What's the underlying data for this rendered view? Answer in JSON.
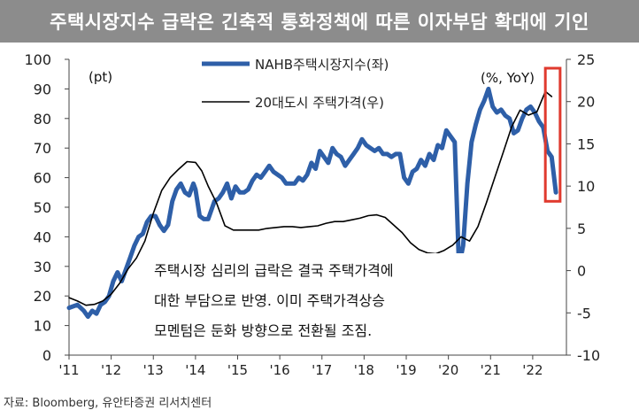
{
  "title": "주택시장지수 급락은 긴축적 통화정책에 따른 이자부담 확대에 기인",
  "source": "자료: Bloomberg, 유안타증권 리서치센터",
  "chart_data": {
    "type": "line",
    "left_axis_unit": "(pt)",
    "right_axis_unit": "(%, YoY)",
    "left_ylim": [
      0,
      100
    ],
    "right_ylim": [
      -10,
      25
    ],
    "left_ticks": [
      "0",
      "10",
      "20",
      "30",
      "40",
      "50",
      "60",
      "70",
      "80",
      "90",
      "100"
    ],
    "right_ticks": [
      "-10",
      "-5",
      "0",
      "5",
      "10",
      "15",
      "20",
      "25"
    ],
    "x_ticks": [
      "'11",
      "'12",
      "'13",
      "'14",
      "'15",
      "'16",
      "'17",
      "'18",
      "'19",
      "'20",
      "'21",
      "'22"
    ],
    "annotation": [
      "주택시장 심리의 급락은 결국 주택가격에",
      "대한 부담으로 반영. 이미 주택가격상승",
      "모멘텀은 둔화 방향으로 전환될 조짐."
    ],
    "colors": {
      "nahb": "#2e5fa8",
      "price": "#000000",
      "highlight": "#e03a2e"
    },
    "series": [
      {
        "name": "NAHB주택시장지수(좌)",
        "axis": "left",
        "points": [
          [
            2011.0,
            16
          ],
          [
            2011.1,
            16.5
          ],
          [
            2011.2,
            17
          ],
          [
            2011.35,
            15
          ],
          [
            2011.45,
            13
          ],
          [
            2011.55,
            15
          ],
          [
            2011.65,
            14
          ],
          [
            2011.75,
            17
          ],
          [
            2011.85,
            18
          ],
          [
            2011.95,
            20
          ],
          [
            2012.05,
            25
          ],
          [
            2012.15,
            28
          ],
          [
            2012.25,
            25
          ],
          [
            2012.35,
            29
          ],
          [
            2012.45,
            33
          ],
          [
            2012.55,
            37
          ],
          [
            2012.65,
            40
          ],
          [
            2012.75,
            41
          ],
          [
            2012.85,
            45
          ],
          [
            2012.95,
            47
          ],
          [
            2013.05,
            47
          ],
          [
            2013.15,
            44
          ],
          [
            2013.25,
            42
          ],
          [
            2013.35,
            44
          ],
          [
            2013.45,
            52
          ],
          [
            2013.55,
            56
          ],
          [
            2013.65,
            58
          ],
          [
            2013.75,
            55
          ],
          [
            2013.85,
            54
          ],
          [
            2013.95,
            58
          ],
          [
            2014.0,
            56
          ],
          [
            2014.1,
            47
          ],
          [
            2014.2,
            46
          ],
          [
            2014.3,
            46
          ],
          [
            2014.45,
            52
          ],
          [
            2014.55,
            53
          ],
          [
            2014.65,
            55
          ],
          [
            2014.75,
            58
          ],
          [
            2014.85,
            53
          ],
          [
            2014.95,
            57
          ],
          [
            2015.05,
            55
          ],
          [
            2015.15,
            55
          ],
          [
            2015.25,
            56
          ],
          [
            2015.35,
            59
          ],
          [
            2015.45,
            61
          ],
          [
            2015.55,
            60
          ],
          [
            2015.65,
            62
          ],
          [
            2015.75,
            64
          ],
          [
            2015.85,
            62
          ],
          [
            2015.95,
            61
          ],
          [
            2016.05,
            60
          ],
          [
            2016.15,
            58
          ],
          [
            2016.25,
            58
          ],
          [
            2016.35,
            58
          ],
          [
            2016.45,
            60
          ],
          [
            2016.55,
            59
          ],
          [
            2016.65,
            61
          ],
          [
            2016.75,
            65
          ],
          [
            2016.85,
            63
          ],
          [
            2016.95,
            69
          ],
          [
            2017.05,
            67
          ],
          [
            2017.15,
            65
          ],
          [
            2017.25,
            70
          ],
          [
            2017.35,
            68
          ],
          [
            2017.45,
            67
          ],
          [
            2017.55,
            64
          ],
          [
            2017.65,
            66
          ],
          [
            2017.75,
            68
          ],
          [
            2017.85,
            70
          ],
          [
            2017.95,
            73
          ],
          [
            2018.05,
            71
          ],
          [
            2018.15,
            70
          ],
          [
            2018.25,
            69
          ],
          [
            2018.35,
            70
          ],
          [
            2018.45,
            68
          ],
          [
            2018.55,
            68
          ],
          [
            2018.65,
            67
          ],
          [
            2018.75,
            68
          ],
          [
            2018.85,
            68
          ],
          [
            2018.95,
            60
          ],
          [
            2019.05,
            58
          ],
          [
            2019.15,
            62
          ],
          [
            2019.25,
            63
          ],
          [
            2019.35,
            66
          ],
          [
            2019.45,
            64
          ],
          [
            2019.55,
            68
          ],
          [
            2019.65,
            66
          ],
          [
            2019.75,
            71
          ],
          [
            2019.85,
            70
          ],
          [
            2019.95,
            76
          ],
          [
            2020.05,
            74
          ],
          [
            2020.15,
            72
          ],
          [
            2020.25,
            30
          ],
          [
            2020.35,
            37
          ],
          [
            2020.45,
            58
          ],
          [
            2020.55,
            72
          ],
          [
            2020.65,
            78
          ],
          [
            2020.75,
            83
          ],
          [
            2020.85,
            86
          ],
          [
            2020.95,
            90
          ],
          [
            2021.05,
            84
          ],
          [
            2021.15,
            82
          ],
          [
            2021.25,
            83
          ],
          [
            2021.35,
            81
          ],
          [
            2021.45,
            80
          ],
          [
            2021.55,
            75
          ],
          [
            2021.65,
            76
          ],
          [
            2021.75,
            80
          ],
          [
            2021.85,
            83
          ],
          [
            2021.95,
            84
          ],
          [
            2022.05,
            82
          ],
          [
            2022.15,
            79
          ],
          [
            2022.25,
            77
          ],
          [
            2022.35,
            69
          ],
          [
            2022.45,
            67
          ],
          [
            2022.55,
            55
          ]
        ]
      },
      {
        "name": "20대도시 주택가격(우)",
        "axis": "right",
        "points": [
          [
            2011.0,
            -3.2
          ],
          [
            2011.2,
            -3.6
          ],
          [
            2011.4,
            -4.1
          ],
          [
            2011.6,
            -4.0
          ],
          [
            2011.8,
            -3.6
          ],
          [
            2012.0,
            -2.8
          ],
          [
            2012.2,
            -1.5
          ],
          [
            2012.4,
            0.2
          ],
          [
            2012.6,
            1.5
          ],
          [
            2012.8,
            3.5
          ],
          [
            2013.0,
            6.8
          ],
          [
            2013.2,
            9.5
          ],
          [
            2013.4,
            11.0
          ],
          [
            2013.6,
            12.0
          ],
          [
            2013.8,
            12.9
          ],
          [
            2014.0,
            12.8
          ],
          [
            2014.15,
            11.8
          ],
          [
            2014.3,
            10.0
          ],
          [
            2014.5,
            8.0
          ],
          [
            2014.7,
            5.3
          ],
          [
            2014.9,
            4.8
          ],
          [
            2015.1,
            4.8
          ],
          [
            2015.3,
            4.8
          ],
          [
            2015.5,
            4.8
          ],
          [
            2015.7,
            5.0
          ],
          [
            2015.9,
            5.1
          ],
          [
            2016.1,
            5.2
          ],
          [
            2016.3,
            5.2
          ],
          [
            2016.5,
            5.1
          ],
          [
            2016.7,
            5.2
          ],
          [
            2016.9,
            5.3
          ],
          [
            2017.1,
            5.6
          ],
          [
            2017.3,
            5.8
          ],
          [
            2017.5,
            5.8
          ],
          [
            2017.7,
            6.0
          ],
          [
            2017.9,
            6.2
          ],
          [
            2018.1,
            6.5
          ],
          [
            2018.3,
            6.6
          ],
          [
            2018.5,
            6.3
          ],
          [
            2018.7,
            5.4
          ],
          [
            2018.9,
            4.5
          ],
          [
            2019.1,
            3.3
          ],
          [
            2019.3,
            2.5
          ],
          [
            2019.5,
            2.1
          ],
          [
            2019.7,
            2.0
          ],
          [
            2019.9,
            2.4
          ],
          [
            2020.1,
            3.0
          ],
          [
            2020.3,
            4.0
          ],
          [
            2020.5,
            3.5
          ],
          [
            2020.7,
            5.2
          ],
          [
            2020.9,
            8.0
          ],
          [
            2021.1,
            11.0
          ],
          [
            2021.3,
            14.0
          ],
          [
            2021.5,
            17.0
          ],
          [
            2021.7,
            19.0
          ],
          [
            2021.9,
            18.4
          ],
          [
            2022.1,
            18.8
          ],
          [
            2022.3,
            21.2
          ],
          [
            2022.45,
            20.6
          ]
        ]
      }
    ],
    "highlight_range": {
      "x": [
        2022.3,
        2022.65
      ],
      "left_y": [
        52,
        97
      ]
    }
  }
}
